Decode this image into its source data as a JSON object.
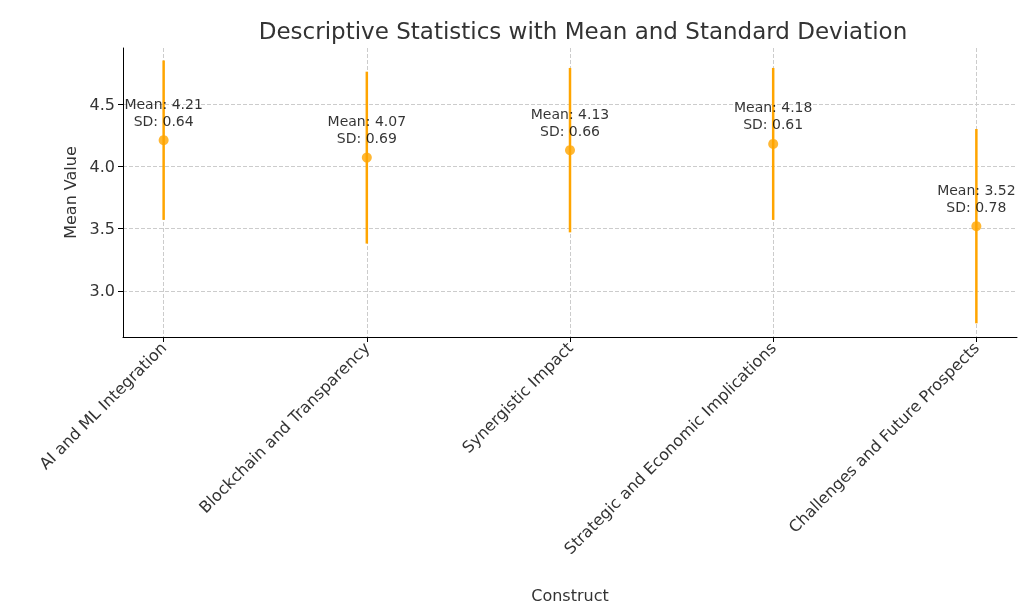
{
  "chart_data": {
    "type": "scatter",
    "title": "Descriptive Statistics with Mean and Standard Deviation",
    "xlabel": "Construct",
    "ylabel": "Mean Value",
    "categories": [
      "AI and ML Integration",
      "Blockchain and Transparency",
      "Synergistic Impact",
      "Strategic and Economic Implications",
      "Challenges and Future Prospects"
    ],
    "values": [
      4.21,
      4.07,
      4.13,
      4.18,
      3.52
    ],
    "errors": [
      0.64,
      0.69,
      0.66,
      0.61,
      0.78
    ],
    "value_labels": [
      "Mean: 4.21\nSD: 0.64",
      "Mean: 4.07\nSD: 0.69",
      "Mean: 4.13\nSD: 0.66",
      "Mean: 4.18\nSD: 0.61",
      "Mean: 3.52\nSD: 0.78"
    ],
    "color": "#ffa500",
    "marker": "circle",
    "ylim": [
      2.63,
      4.95
    ],
    "yticks": [
      {
        "value": 3,
        "label": "3.0"
      },
      {
        "value": 3.5,
        "label": "3.5"
      },
      {
        "value": 4,
        "label": "4.0"
      },
      {
        "value": 4.5,
        "label": "4.5"
      }
    ],
    "grid": true
  }
}
